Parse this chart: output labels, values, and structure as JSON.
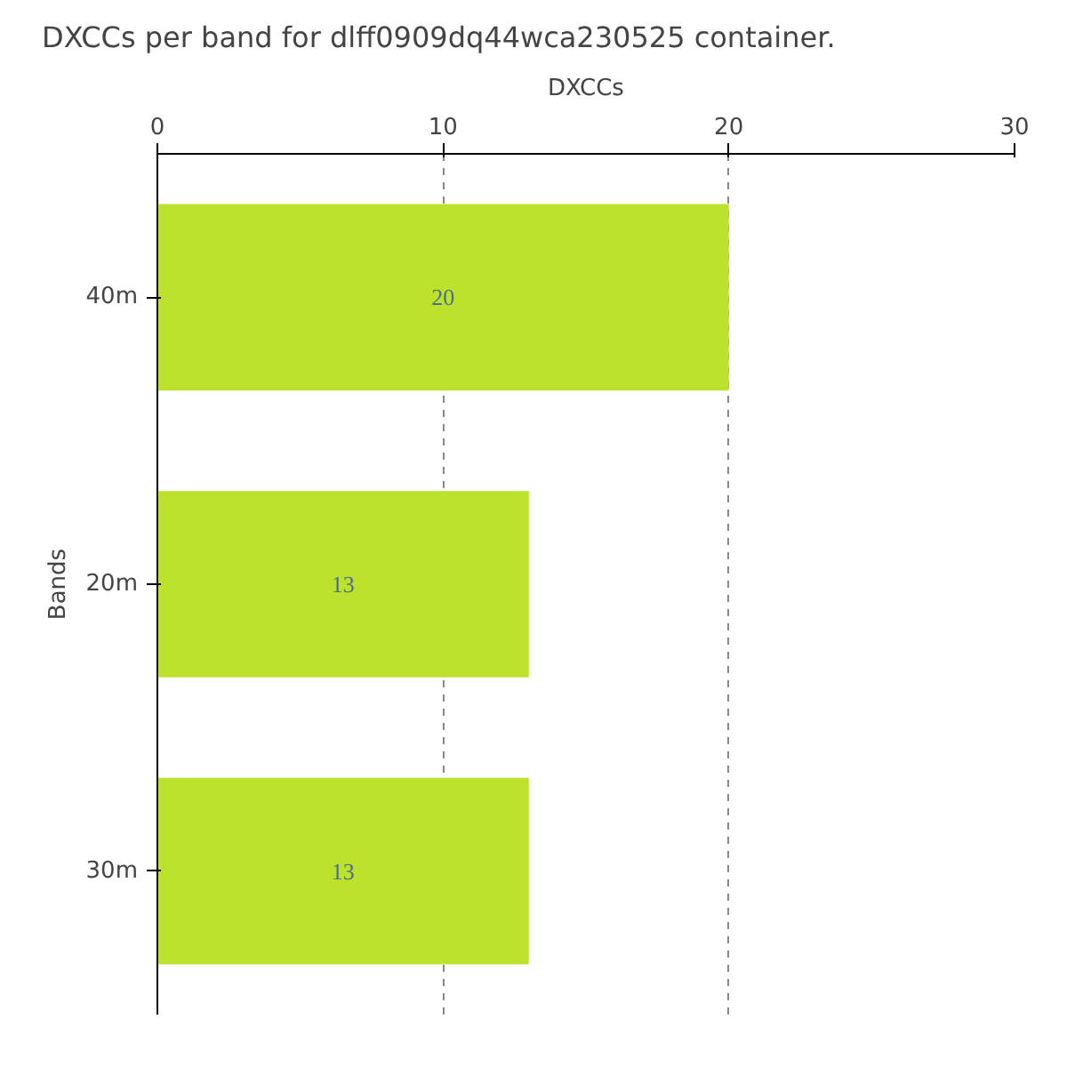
{
  "chart_data": {
    "type": "bar",
    "orientation": "horizontal",
    "title": "DXCCs per band for dlff0909dq44wca230525 container.",
    "xlabel": "DXCCs",
    "ylabel": "Bands",
    "categories": [
      "40m",
      "20m",
      "30m"
    ],
    "values": [
      20,
      13,
      13
    ],
    "color": "#bde22e",
    "xlim": [
      0,
      30
    ],
    "xticks": [
      0,
      10,
      20,
      30
    ],
    "grid": "x",
    "data_labels": true
  }
}
